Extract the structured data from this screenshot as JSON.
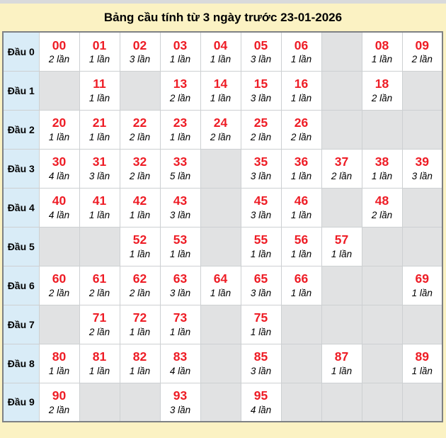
{
  "colors": {
    "page_bg": "#fbf2c3",
    "top_strip": "#d9dadb",
    "table_border": "#7e8184",
    "grid_line": "#cdd0d2",
    "row_label_bg": "#d9ecf7",
    "filled_cell_bg": "#ffffff",
    "empty_cell_bg": "#e1e2e3",
    "number_red": "#ee1c25",
    "text_black": "#000000"
  },
  "chart_data": {
    "type": "table",
    "title": "Bảng cầu tính từ 3 ngày trước 23-01-2026",
    "row_labels": [
      "Đầu 0",
      "Đầu 1",
      "Đầu 2",
      "Đầu 3",
      "Đầu 4",
      "Đầu 5",
      "Đầu 6",
      "Đầu 7",
      "Đầu 8",
      "Đầu 9"
    ],
    "count_unit": "lần",
    "rows": [
      [
        {
          "number": "00",
          "count": 2,
          "times_label": "2 lần"
        },
        {
          "number": "01",
          "count": 1,
          "times_label": "1 lần"
        },
        {
          "number": "02",
          "count": 3,
          "times_label": "3 lần"
        },
        {
          "number": "03",
          "count": 1,
          "times_label": "1 lần"
        },
        {
          "number": "04",
          "count": 1,
          "times_label": "1 lần"
        },
        {
          "number": "05",
          "count": 3,
          "times_label": "3 lần"
        },
        {
          "number": "06",
          "count": 1,
          "times_label": "1 lần"
        },
        null,
        {
          "number": "08",
          "count": 1,
          "times_label": "1 lần"
        },
        {
          "number": "09",
          "count": 2,
          "times_label": "2 lần"
        }
      ],
      [
        null,
        {
          "number": "11",
          "count": 1,
          "times_label": "1 lần"
        },
        null,
        {
          "number": "13",
          "count": 2,
          "times_label": "2 lần"
        },
        {
          "number": "14",
          "count": 1,
          "times_label": "1 lần"
        },
        {
          "number": "15",
          "count": 3,
          "times_label": "3 lần"
        },
        {
          "number": "16",
          "count": 1,
          "times_label": "1 lần"
        },
        null,
        {
          "number": "18",
          "count": 2,
          "times_label": "2 lần"
        },
        null
      ],
      [
        {
          "number": "20",
          "count": 1,
          "times_label": "1 lần"
        },
        {
          "number": "21",
          "count": 1,
          "times_label": "1 lần"
        },
        {
          "number": "22",
          "count": 2,
          "times_label": "2 lần"
        },
        {
          "number": "23",
          "count": 1,
          "times_label": "1 lần"
        },
        {
          "number": "24",
          "count": 2,
          "times_label": "2 lần"
        },
        {
          "number": "25",
          "count": 2,
          "times_label": "2 lần"
        },
        {
          "number": "26",
          "count": 2,
          "times_label": "2 lần"
        },
        null,
        null,
        null
      ],
      [
        {
          "number": "30",
          "count": 4,
          "times_label": "4 lần"
        },
        {
          "number": "31",
          "count": 3,
          "times_label": "3 lần"
        },
        {
          "number": "32",
          "count": 2,
          "times_label": "2 lần"
        },
        {
          "number": "33",
          "count": 5,
          "times_label": "5 lần"
        },
        null,
        {
          "number": "35",
          "count": 3,
          "times_label": "3 lần"
        },
        {
          "number": "36",
          "count": 1,
          "times_label": "1 lần"
        },
        {
          "number": "37",
          "count": 2,
          "times_label": "2 lần"
        },
        {
          "number": "38",
          "count": 1,
          "times_label": "1 lần"
        },
        {
          "number": "39",
          "count": 3,
          "times_label": "3 lần"
        }
      ],
      [
        {
          "number": "40",
          "count": 4,
          "times_label": "4 lần"
        },
        {
          "number": "41",
          "count": 1,
          "times_label": "1 lần"
        },
        {
          "number": "42",
          "count": 1,
          "times_label": "1 lần"
        },
        {
          "number": "43",
          "count": 3,
          "times_label": "3 lần"
        },
        null,
        {
          "number": "45",
          "count": 3,
          "times_label": "3 lần"
        },
        {
          "number": "46",
          "count": 1,
          "times_label": "1 lần"
        },
        null,
        {
          "number": "48",
          "count": 2,
          "times_label": "2 lần"
        },
        null
      ],
      [
        null,
        null,
        {
          "number": "52",
          "count": 1,
          "times_label": "1 lần"
        },
        {
          "number": "53",
          "count": 1,
          "times_label": "1 lần"
        },
        null,
        {
          "number": "55",
          "count": 1,
          "times_label": "1 lần"
        },
        {
          "number": "56",
          "count": 1,
          "times_label": "1 lần"
        },
        {
          "number": "57",
          "count": 1,
          "times_label": "1 lần"
        },
        null,
        null
      ],
      [
        {
          "number": "60",
          "count": 2,
          "times_label": "2 lần"
        },
        {
          "number": "61",
          "count": 2,
          "times_label": "2 lần"
        },
        {
          "number": "62",
          "count": 2,
          "times_label": "2 lần"
        },
        {
          "number": "63",
          "count": 3,
          "times_label": "3 lần"
        },
        {
          "number": "64",
          "count": 1,
          "times_label": "1 lần"
        },
        {
          "number": "65",
          "count": 3,
          "times_label": "3 lần"
        },
        {
          "number": "66",
          "count": 1,
          "times_label": "1 lần"
        },
        null,
        null,
        {
          "number": "69",
          "count": 1,
          "times_label": "1 lần"
        }
      ],
      [
        null,
        {
          "number": "71",
          "count": 2,
          "times_label": "2 lần"
        },
        {
          "number": "72",
          "count": 1,
          "times_label": "1 lần"
        },
        {
          "number": "73",
          "count": 1,
          "times_label": "1 lần"
        },
        null,
        {
          "number": "75",
          "count": 1,
          "times_label": "1 lần"
        },
        null,
        null,
        null,
        null
      ],
      [
        {
          "number": "80",
          "count": 1,
          "times_label": "1 lần"
        },
        {
          "number": "81",
          "count": 1,
          "times_label": "1 lần"
        },
        {
          "number": "82",
          "count": 1,
          "times_label": "1 lần"
        },
        {
          "number": "83",
          "count": 4,
          "times_label": "4 lần"
        },
        null,
        {
          "number": "85",
          "count": 3,
          "times_label": "3 lần"
        },
        null,
        {
          "number": "87",
          "count": 1,
          "times_label": "1 lần"
        },
        null,
        {
          "number": "89",
          "count": 1,
          "times_label": "1 lần"
        }
      ],
      [
        {
          "number": "90",
          "count": 2,
          "times_label": "2 lần"
        },
        null,
        null,
        {
          "number": "93",
          "count": 3,
          "times_label": "3 lần"
        },
        null,
        {
          "number": "95",
          "count": 4,
          "times_label": "4 lần"
        },
        null,
        null,
        null,
        null
      ]
    ]
  }
}
